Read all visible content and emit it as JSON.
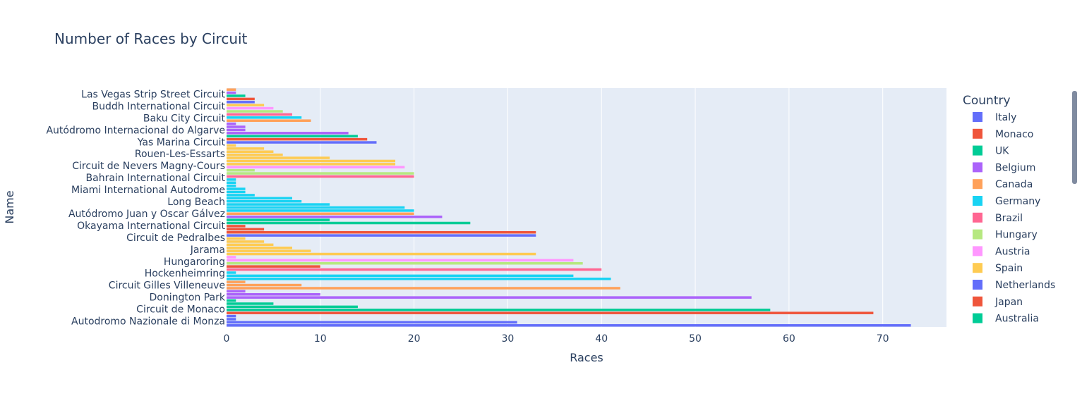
{
  "chart_data": {
    "type": "bar",
    "orientation": "horizontal",
    "title": "Number of Races by Circuit",
    "xlabel": "Races",
    "ylabel": "Name",
    "xlim": [
      0,
      76.8
    ],
    "x_ticks": [
      0,
      10,
      20,
      30,
      40,
      50,
      60,
      70
    ],
    "grid": true,
    "legend_placement": "right",
    "legend_title": "Country",
    "background": "#e5ecf6",
    "y_tick_labels": [
      "Autodromo Nazionale di Monza",
      "Circuit de Monaco",
      "Donington Park",
      "Circuit Gilles Villeneuve",
      "Hockenheimring",
      "Hungaroring",
      "Jarama",
      "Circuit de Pedralbes",
      "Okayama International Circuit",
      "Autódromo Juan y Oscar Gálvez",
      "Long Beach",
      "Miami International Autodrome",
      "Bahrain International Circuit",
      "Circuit de Nevers Magny-Cours",
      "Rouen-Les-Essarts",
      "Yas Marina Circuit",
      "Autódromo Internacional do Algarve",
      "Baku City Circuit",
      "Buddh International Circuit",
      "Las Vegas Strip Street Circuit"
    ],
    "legend": [
      {
        "name": "Italy",
        "color": "#636efa"
      },
      {
        "name": "Monaco",
        "color": "#ef553b"
      },
      {
        "name": "UK",
        "color": "#00cc96"
      },
      {
        "name": "Belgium",
        "color": "#ab63fa"
      },
      {
        "name": "Canada",
        "color": "#ffa15a"
      },
      {
        "name": "Germany",
        "color": "#19d3f3"
      },
      {
        "name": "Brazil",
        "color": "#ff6692"
      },
      {
        "name": "Hungary",
        "color": "#b6e880"
      },
      {
        "name": "Austria",
        "color": "#ff97ff"
      },
      {
        "name": "Spain",
        "color": "#fecb52"
      },
      {
        "name": "Netherlands",
        "color": "#636efa"
      },
      {
        "name": "Japan",
        "color": "#ef553b"
      },
      {
        "name": "Australia",
        "color": "#00cc96"
      }
    ],
    "bars": [
      {
        "value": 73,
        "color": "#636efa"
      },
      {
        "value": 31,
        "color": "#636efa"
      },
      {
        "value": 1,
        "color": "#636efa"
      },
      {
        "value": 1,
        "color": "#636efa"
      },
      {
        "value": 69,
        "color": "#ef553b"
      },
      {
        "value": 58,
        "color": "#00cc96"
      },
      {
        "value": 14,
        "color": "#00cc96"
      },
      {
        "value": 5,
        "color": "#00cc96"
      },
      {
        "value": 1,
        "color": "#00cc96"
      },
      {
        "value": 56,
        "color": "#ab63fa"
      },
      {
        "value": 10,
        "color": "#ab63fa"
      },
      {
        "value": 2,
        "color": "#ab63fa"
      },
      {
        "value": 42,
        "color": "#ffa15a"
      },
      {
        "value": 8,
        "color": "#ffa15a"
      },
      {
        "value": 2,
        "color": "#ffa15a"
      },
      {
        "value": 41,
        "color": "#19d3f3"
      },
      {
        "value": 37,
        "color": "#19d3f3"
      },
      {
        "value": 1,
        "color": "#19d3f3"
      },
      {
        "value": 40,
        "color": "#ff6692"
      },
      {
        "value": 10,
        "color": "#ef553b"
      },
      {
        "value": 38,
        "color": "#b6e880"
      },
      {
        "value": 37,
        "color": "#ff97ff"
      },
      {
        "value": 1,
        "color": "#ff97ff"
      },
      {
        "value": 33,
        "color": "#fecb52"
      },
      {
        "value": 9,
        "color": "#fecb52"
      },
      {
        "value": 7,
        "color": "#fecb52"
      },
      {
        "value": 5,
        "color": "#fecb52"
      },
      {
        "value": 4,
        "color": "#fecb52"
      },
      {
        "value": 2,
        "color": "#fecb52"
      },
      {
        "value": 33,
        "color": "#636efa"
      },
      {
        "value": 33,
        "color": "#ef553b"
      },
      {
        "value": 4,
        "color": "#ef553b"
      },
      {
        "value": 2,
        "color": "#ef553b"
      },
      {
        "value": 26,
        "color": "#00cc96"
      },
      {
        "value": 11,
        "color": "#00cc96"
      },
      {
        "value": 23,
        "color": "#ab63fa"
      },
      {
        "value": 20,
        "color": "#ffa15a"
      },
      {
        "value": 20,
        "color": "#19d3f3"
      },
      {
        "value": 19,
        "color": "#19d3f3"
      },
      {
        "value": 11,
        "color": "#19d3f3"
      },
      {
        "value": 8,
        "color": "#19d3f3"
      },
      {
        "value": 7,
        "color": "#19d3f3"
      },
      {
        "value": 3,
        "color": "#19d3f3"
      },
      {
        "value": 2,
        "color": "#19d3f3"
      },
      {
        "value": 2,
        "color": "#19d3f3"
      },
      {
        "value": 1,
        "color": "#19d3f3"
      },
      {
        "value": 1,
        "color": "#19d3f3"
      },
      {
        "value": 1,
        "color": "#19d3f3"
      },
      {
        "value": 20,
        "color": "#ff6692"
      },
      {
        "value": 20,
        "color": "#b6e880"
      },
      {
        "value": 3,
        "color": "#b6e880"
      },
      {
        "value": 19,
        "color": "#ff97ff"
      },
      {
        "value": 18,
        "color": "#fecb52"
      },
      {
        "value": 18,
        "color": "#fecb52"
      },
      {
        "value": 11,
        "color": "#fecb52"
      },
      {
        "value": 6,
        "color": "#fecb52"
      },
      {
        "value": 5,
        "color": "#fecb52"
      },
      {
        "value": 4,
        "color": "#fecb52"
      },
      {
        "value": 1,
        "color": "#fecb52"
      },
      {
        "value": 16,
        "color": "#636efa"
      },
      {
        "value": 15,
        "color": "#ef553b"
      },
      {
        "value": 14,
        "color": "#00cc96"
      },
      {
        "value": 13,
        "color": "#ab63fa"
      },
      {
        "value": 2,
        "color": "#ab63fa"
      },
      {
        "value": 2,
        "color": "#ab63fa"
      },
      {
        "value": 1,
        "color": "#ab63fa"
      },
      {
        "value": 9,
        "color": "#ffa15a"
      },
      {
        "value": 8,
        "color": "#19d3f3"
      },
      {
        "value": 7,
        "color": "#ff6692"
      },
      {
        "value": 6,
        "color": "#b6e880"
      },
      {
        "value": 5,
        "color": "#ff97ff"
      },
      {
        "value": 4,
        "color": "#fecb52"
      },
      {
        "value": 3,
        "color": "#636efa"
      },
      {
        "value": 3,
        "color": "#ef553b"
      },
      {
        "value": 2,
        "color": "#00cc96"
      },
      {
        "value": 1,
        "color": "#ab63fa"
      },
      {
        "value": 1,
        "color": "#ffa15a"
      }
    ]
  }
}
